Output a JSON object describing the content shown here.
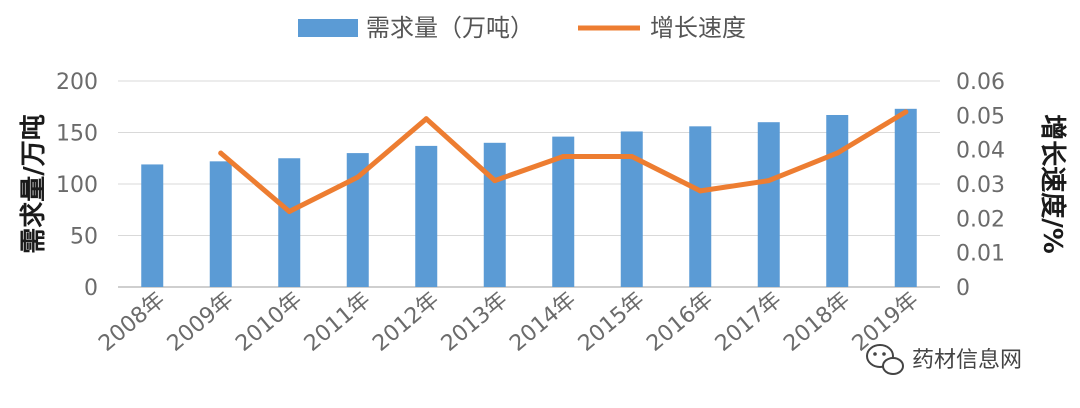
{
  "chart_data": {
    "type": "bar",
    "title": "",
    "categories": [
      "2008年",
      "2009年",
      "2010年",
      "2011年",
      "2012年",
      "2013年",
      "2014年",
      "2015年",
      "2016年",
      "2017年",
      "2018年",
      "2019年"
    ],
    "series": [
      {
        "name": "需求量（万吨）",
        "type": "bar",
        "axis": "left",
        "color": "#5b9bd5",
        "values": [
          119,
          122,
          125,
          130,
          137,
          140,
          146,
          151,
          156,
          160,
          167,
          173
        ]
      },
      {
        "name": "增长速度",
        "type": "line",
        "axis": "right",
        "color": "#ed7d31",
        "values": [
          null,
          0.039,
          0.022,
          0.032,
          0.049,
          0.031,
          0.038,
          0.038,
          0.028,
          0.031,
          0.039,
          0.051
        ]
      }
    ],
    "y_left": {
      "label": "需求量/万吨",
      "ylim": [
        0,
        200
      ],
      "ticks": [
        "0",
        "50",
        "100",
        "150",
        "200"
      ]
    },
    "y_right": {
      "label": "增长速度/%",
      "ylim": [
        0,
        0.06
      ],
      "ticks": [
        "0",
        "0.01",
        "0.02",
        "0.03",
        "0.04",
        "0.05",
        "0.06"
      ]
    },
    "xlabel": "",
    "grid": true,
    "legend": "top"
  },
  "watermark": {
    "text": "药材信息网",
    "icon": "wechat-icon"
  }
}
